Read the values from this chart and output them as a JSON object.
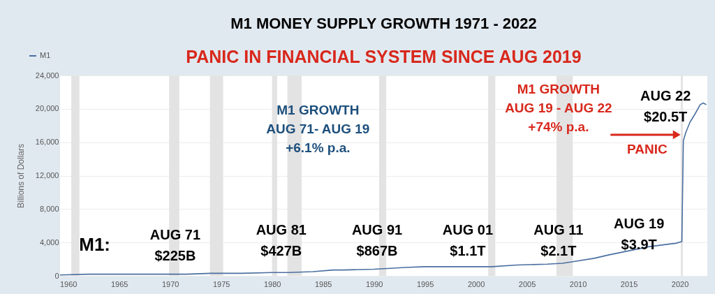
{
  "chart_data": {
    "type": "line",
    "title": "M1 MONEY SUPPLY GROWTH 1971 - 2022",
    "subtitle": "PANIC IN FINANCIAL SYSTEM SINCE AUG 2019",
    "ylabel": "Billions of Dollars",
    "x": [
      1959.2,
      1962,
      1965,
      1968,
      1970,
      1971.6,
      1974,
      1977,
      1980,
      1981.6,
      1984,
      1986,
      1987,
      1990,
      1991.6,
      1993,
      1995,
      1998,
      2000,
      2001.6,
      2004,
      2007,
      2008.5,
      2009.5,
      2011.6,
      2013,
      2015,
      2017,
      2019.6,
      2020.2,
      2020.35,
      2020.6,
      2021,
      2021.5,
      2022,
      2022.3,
      2022.6
    ],
    "series": [
      {
        "name": "M1",
        "color": "#4a6fa0",
        "values": [
          100,
          200,
          200,
          200,
          200,
          200,
          300,
          300,
          400,
          400,
          500,
          700,
          700,
          800,
          900,
          1000,
          1100,
          1100,
          1100,
          1100,
          1300,
          1400,
          1500,
          1700,
          2100,
          2500,
          3000,
          3500,
          3900,
          4100,
          16200,
          17200,
          18400,
          19400,
          20500,
          20700,
          20500
        ]
      }
    ],
    "xlim": [
      1959.2,
      2022.7
    ],
    "xticks": [
      1960,
      1965,
      1970,
      1975,
      1980,
      1985,
      1990,
      1995,
      2000,
      2005,
      2010,
      2015,
      2020
    ],
    "ylim": [
      0,
      24000
    ],
    "yticks": [
      0,
      {
        "value": 4000,
        "label": "4,000"
      },
      {
        "value": 8000,
        "label": "8,000"
      },
      {
        "value": 12000,
        "label": "12,000"
      },
      {
        "value": 16000,
        "label": "16,000"
      },
      {
        "value": 20000,
        "label": "20,000"
      },
      {
        "value": 24000,
        "label": "24,000"
      }
    ],
    "bands": [
      {
        "axis": "x",
        "from": 1960.3,
        "to": 1961.1,
        "color": "#e3e3e3"
      },
      {
        "axis": "x",
        "from": 1969.9,
        "to": 1970.9,
        "color": "#e3e3e3"
      },
      {
        "axis": "x",
        "from": 1973.9,
        "to": 1975.2,
        "color": "#e3e3e3"
      },
      {
        "axis": "x",
        "from": 1980.0,
        "to": 1980.5,
        "color": "#e3e3e3"
      },
      {
        "axis": "x",
        "from": 1981.5,
        "to": 1982.9,
        "color": "#e3e3e3"
      },
      {
        "axis": "x",
        "from": 1990.5,
        "to": 1991.2,
        "color": "#e3e3e3"
      },
      {
        "axis": "x",
        "from": 2001.2,
        "to": 2001.9,
        "color": "#e3e3e3"
      },
      {
        "axis": "x",
        "from": 2007.9,
        "to": 2009.5,
        "color": "#e3e3e3"
      },
      {
        "axis": "x",
        "from": 2020.1,
        "to": 2020.3,
        "color": "#e3e3e3"
      }
    ],
    "annotations": [
      "M1:",
      "AUG 71\n$225B",
      "AUG 81\n$427B",
      "AUG 91\n$867B",
      "AUG 01\n$1.1T",
      "AUG 11\n$2.1T",
      "AUG 19\n$3.9T",
      "AUG 22\n$20.5T",
      "M1 GROWTH\nAUG 71- AUG 19\n+6.1% p.a.",
      "M1 GROWTH\nAUG 19 - AUG 22\n+74% p.a.",
      "PANIC"
    ],
    "grid": "y",
    "legend": "top left"
  }
}
